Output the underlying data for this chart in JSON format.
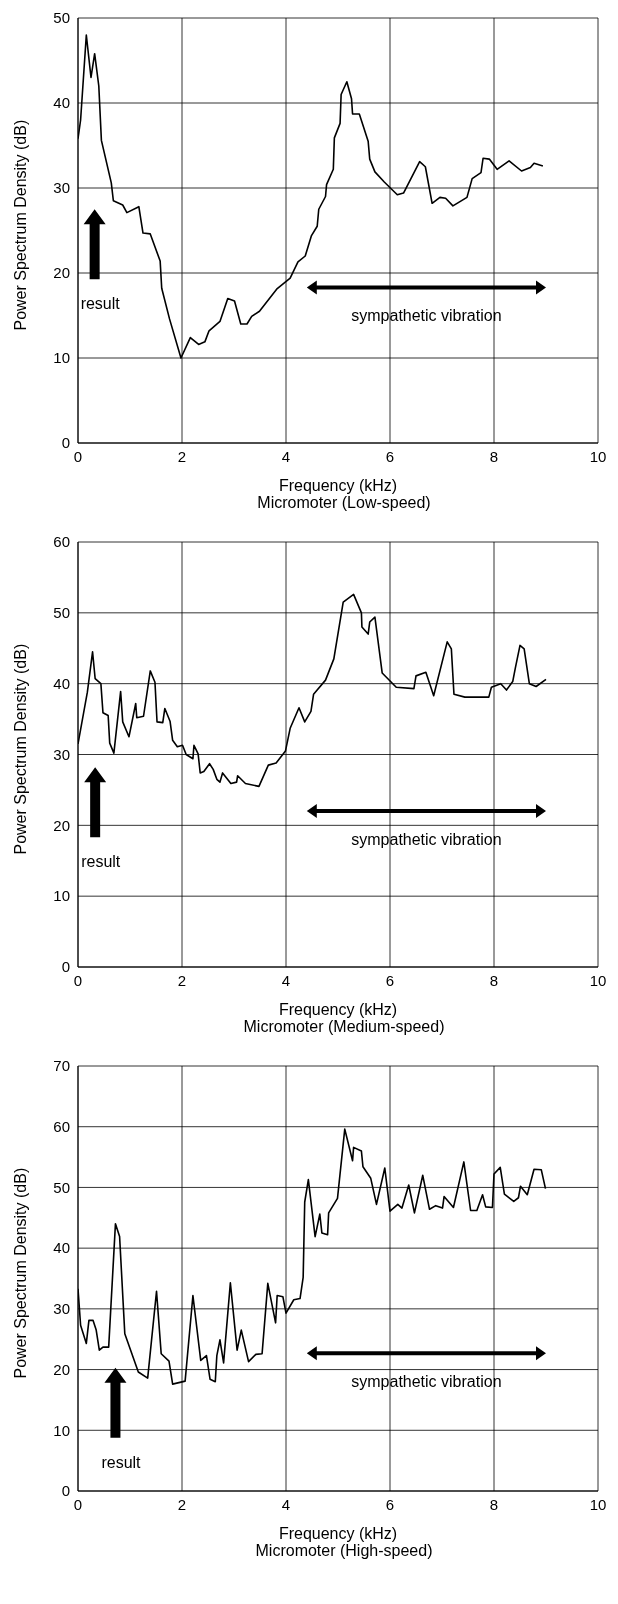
{
  "chart_data": [
    {
      "type": "line",
      "title": "Micromoter (Low-speed)",
      "xlabel": "Frequency (kHz)",
      "ylabel": "Power Spectrum Density (dB)",
      "xlim": [
        0,
        10
      ],
      "xticks": [
        0,
        2,
        4,
        6,
        8,
        10
      ],
      "ylim": [
        0,
        50
      ],
      "yticks": [
        0,
        10,
        20,
        30,
        40,
        50
      ],
      "grid": true,
      "marker": "none",
      "line_style": "solid",
      "series": [
        {
          "color": "#000000",
          "x": [
            0,
            0.05,
            0.16,
            0.25,
            0.32,
            0.4,
            0.45,
            0.64,
            0.68,
            0.86,
            0.94,
            1.17,
            1.25,
            1.39,
            1.58,
            1.61,
            1.76,
            1.98,
            2.16,
            2.32,
            2.44,
            2.52,
            2.73,
            2.88,
            3.01,
            3.13,
            3.25,
            3.34,
            3.49,
            3.82,
            4.08,
            4.23,
            4.37,
            4.49,
            4.6,
            4.63,
            4.76,
            4.78,
            4.91,
            4.93,
            5.04,
            5.06,
            5.17,
            5.26,
            5.28,
            5.41,
            5.58,
            5.61,
            5.71,
            5.89,
            6.14,
            6.26,
            6.57,
            6.68,
            6.81,
            6.96,
            7.07,
            7.21,
            7.48,
            7.58,
            7.75,
            7.79,
            7.91,
            8.06,
            8.29,
            8.53,
            8.7,
            8.77,
            8.94
          ],
          "values": [
            35.8,
            38,
            48,
            43,
            45.8,
            42,
            35.6,
            30.6,
            28.5,
            28,
            27.1,
            27.8,
            24.7,
            24.6,
            21.4,
            18.2,
            14.6,
            10,
            12.4,
            11.6,
            11.9,
            13.2,
            14.3,
            17,
            16.7,
            14,
            14,
            14.9,
            15.5,
            18.1,
            19.4,
            21.3,
            22,
            24.4,
            25.5,
            27.5,
            29,
            30.4,
            32.2,
            35.9,
            37.6,
            41,
            42.5,
            40.5,
            38.7,
            38.7,
            35.5,
            33.4,
            31.9,
            30.7,
            29.2,
            29.4,
            33.1,
            32.5,
            28.2,
            28.9,
            28.8,
            27.9,
            28.9,
            31.1,
            31.8,
            33.5,
            33.4,
            32.2,
            33.2,
            32,
            32.4,
            32.9,
            32.6
          ]
        }
      ],
      "annotations": [
        "result",
        "sympathetic vibration"
      ]
    },
    {
      "type": "line",
      "title": "Micromoter (Medium-speed)",
      "xlabel": "Frequency (kHz)",
      "ylabel": "Power Spectrum Density (dB)",
      "xlim": [
        0,
        10
      ],
      "xticks": [
        0,
        2,
        4,
        6,
        8,
        10
      ],
      "ylim": [
        0,
        60
      ],
      "yticks": [
        0,
        10,
        20,
        30,
        40,
        50,
        60
      ],
      "grid": true,
      "marker": "none",
      "line_style": "solid",
      "series": [
        {
          "color": "#000000",
          "x": [
            0,
            0.18,
            0.28,
            0.33,
            0.44,
            0.48,
            0.58,
            0.61,
            0.69,
            0.82,
            0.86,
            0.98,
            1.11,
            1.13,
            1.26,
            1.39,
            1.48,
            1.52,
            1.63,
            1.67,
            1.77,
            1.82,
            1.91,
            2.01,
            2.08,
            2.21,
            2.23,
            2.31,
            2.35,
            2.42,
            2.53,
            2.6,
            2.67,
            2.73,
            2.78,
            2.94,
            3.05,
            3.07,
            3.22,
            3.48,
            3.66,
            3.81,
            3.99,
            4.08,
            4.25,
            4.36,
            4.48,
            4.53,
            4.76,
            4.92,
            5.1,
            5.3,
            5.45,
            5.46,
            5.58,
            5.61,
            5.71,
            5.85,
            6.12,
            6.46,
            6.5,
            6.69,
            6.84,
            7.1,
            7.18,
            7.23,
            7.44,
            7.9,
            7.95,
            8.13,
            8.24,
            8.36,
            8.41,
            8.5,
            8.58,
            8.68,
            8.81,
            9.0
          ],
          "values": [
            31.5,
            38.8,
            44.5,
            40.7,
            40,
            35.9,
            35.5,
            31.6,
            30.2,
            38.9,
            34.6,
            32.5,
            37.2,
            35.2,
            35.4,
            41.8,
            40.2,
            34.6,
            34.5,
            36.5,
            34.7,
            32,
            31.1,
            31.3,
            30,
            29.4,
            31.3,
            30.1,
            27.4,
            27.6,
            28.7,
            27.9,
            26.5,
            26.1,
            27.4,
            25.9,
            26.1,
            27,
            25.9,
            25.5,
            28.5,
            28.8,
            30.5,
            33.7,
            36.6,
            34.6,
            36.1,
            38.5,
            40.5,
            43.5,
            51.5,
            52.6,
            50,
            48,
            47,
            48.7,
            49.4,
            41.5,
            39.5,
            39.3,
            41.1,
            41.6,
            38.3,
            45.9,
            44.9,
            38.5,
            38.1,
            38.1,
            39.5,
            40,
            39.1,
            40.3,
            42.2,
            45.4,
            44.9,
            40,
            39.6,
            40.6
          ]
        }
      ],
      "annotations": [
        "result",
        "sympathetic vibration"
      ]
    },
    {
      "type": "line",
      "title": "Micromoter (High-speed)",
      "xlabel": "Frequency (kHz)",
      "ylabel": "Power Spectrum Density (dB)",
      "xlim": [
        0,
        10
      ],
      "xticks": [
        0,
        2,
        4,
        6,
        8,
        10
      ],
      "ylim": [
        0,
        70
      ],
      "yticks": [
        0,
        10,
        20,
        30,
        40,
        50,
        60,
        70
      ],
      "grid": true,
      "marker": "none",
      "line_style": "solid",
      "series": [
        {
          "color": "#000000",
          "x": [
            0,
            0.05,
            0.16,
            0.21,
            0.29,
            0.35,
            0.41,
            0.48,
            0.59,
            0.72,
            0.8,
            0.9,
            1.16,
            1.34,
            1.51,
            1.6,
            1.75,
            1.82,
            2.06,
            2.21,
            2.36,
            2.47,
            2.54,
            2.64,
            2.67,
            2.73,
            2.8,
            2.93,
            3.06,
            3.14,
            3.28,
            3.42,
            3.54,
            3.65,
            3.8,
            3.83,
            3.94,
            4.0,
            4.15,
            4.27,
            4.33,
            4.36,
            4.43,
            4.56,
            4.65,
            4.69,
            4.8,
            4.82,
            4.99,
            5.13,
            5.28,
            5.3,
            5.45,
            5.48,
            5.63,
            5.74,
            5.9,
            6.0,
            6.15,
            6.23,
            6.36,
            6.47,
            6.63,
            6.76,
            6.88,
            7.01,
            7.04,
            7.22,
            7.42,
            7.55,
            7.67,
            7.78,
            7.84,
            7.97,
            8.0,
            8.12,
            8.2,
            8.38,
            8.47,
            8.51,
            8.64,
            8.77,
            8.91,
            8.99
          ],
          "values": [
            33.3,
            27.3,
            24.3,
            28.1,
            28.1,
            26.5,
            23.2,
            23.7,
            23.7,
            44,
            41.9,
            25.9,
            19.6,
            18.6,
            32.9,
            22.6,
            21.4,
            17.6,
            18.1,
            32.2,
            21.5,
            22.3,
            18.4,
            18,
            22.3,
            24.9,
            21.1,
            34.3,
            23.2,
            26.5,
            21.3,
            22.5,
            22.6,
            34.2,
            27.7,
            32.2,
            32,
            29.3,
            31.5,
            31.7,
            35.2,
            47.6,
            51.3,
            41.9,
            45.6,
            42.5,
            42.2,
            45.8,
            48.2,
            59.6,
            54.4,
            56.6,
            56,
            53.4,
            51.5,
            47.2,
            53.2,
            46.1,
            47.2,
            46.6,
            50.4,
            45.8,
            52,
            46.4,
            47,
            46.6,
            48.5,
            46.7,
            54.2,
            46.2,
            46.2,
            48.8,
            46.8,
            46.7,
            52.2,
            53.3,
            48.9,
            47.7,
            48.3,
            50.2,
            48.8,
            53,
            52.9,
            49.8
          ]
        }
      ],
      "annotations": [
        "result",
        "sympathetic vibration"
      ]
    }
  ]
}
